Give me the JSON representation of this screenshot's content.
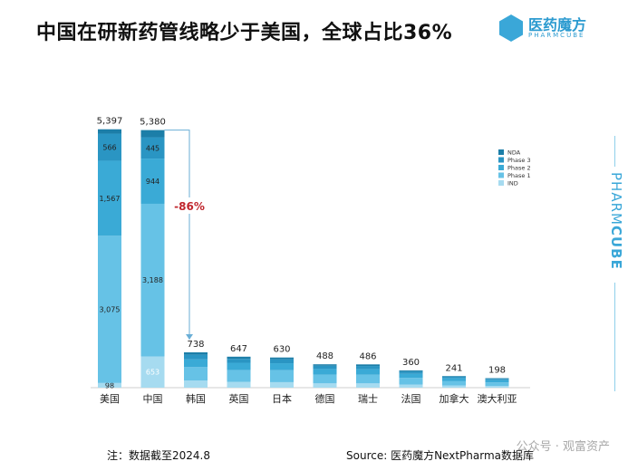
{
  "title": "中国在研新药管线略少于美国，全球占比36%",
  "logo": {
    "name_cn": "医药魔方",
    "name_en": "PHARMCUBE"
  },
  "side_brand": {
    "light": "PHARM",
    "bold": "CUBE"
  },
  "note": "注：数据截至2024.8",
  "source": "Source: 医药魔方NextPharma数据库",
  "watermark": "公众号 · 观富资产",
  "colors": {
    "NDA": "#1c7ea8",
    "Phase 3": "#2a95c3",
    "Phase 2": "#3aaad6",
    "Phase 1": "#66c2e6",
    "IND": "#a6dbf0",
    "annotation": "#c0262d"
  },
  "chart_data": {
    "type": "bar",
    "stacked": true,
    "categories": [
      "美国",
      "中国",
      "韩国",
      "英国",
      "日本",
      "德国",
      "瑞士",
      "法国",
      "加拿大",
      "澳大利亚"
    ],
    "totals": [
      5397,
      5380,
      738,
      647,
      630,
      488,
      486,
      360,
      241,
      198
    ],
    "total_labels": [
      "5,397",
      "5,380",
      "738",
      "647",
      "630",
      "488",
      "486",
      "360",
      "241",
      "198"
    ],
    "legend": [
      "NDA",
      "Phase 3",
      "Phase 2",
      "Phase 1",
      "IND"
    ],
    "legend_position": "right",
    "series": [
      {
        "name": "IND",
        "values": [
          98,
          653,
          150,
          120,
          115,
          90,
          90,
          65,
          45,
          35
        ],
        "labels": [
          "98",
          "653",
          "",
          "",
          "",
          "",
          "",
          "",
          "",
          ""
        ]
      },
      {
        "name": "Phase 1",
        "values": [
          3075,
          3188,
          280,
          250,
          250,
          180,
          180,
          140,
          90,
          75
        ],
        "labels": [
          "3,075",
          "3,188",
          "",
          "",
          "",
          "",
          "",
          "",
          "",
          ""
        ]
      },
      {
        "name": "Phase 2",
        "values": [
          1567,
          944,
          160,
          150,
          145,
          120,
          115,
          85,
          60,
          48
        ],
        "labels": [
          "1,567",
          "944",
          "",
          "",
          "",
          "",
          "",
          "",
          "",
          ""
        ]
      },
      {
        "name": "Phase 3",
        "values": [
          566,
          445,
          98,
          82,
          80,
          68,
          68,
          48,
          32,
          28
        ],
        "labels": [
          "566",
          "445",
          "",
          "",
          "",
          "",
          "",
          "",
          "",
          ""
        ]
      },
      {
        "name": "NDA",
        "values": [
          91,
          150,
          50,
          45,
          40,
          30,
          33,
          22,
          14,
          12
        ],
        "labels": [
          "",
          "",
          "",
          "",
          "",
          "",
          "",
          "",
          "",
          ""
        ]
      }
    ],
    "annotation": {
      "text": "-86%",
      "from": "中国",
      "to": "韩国"
    },
    "ylim": [
      0,
      5600
    ],
    "grid": false
  }
}
